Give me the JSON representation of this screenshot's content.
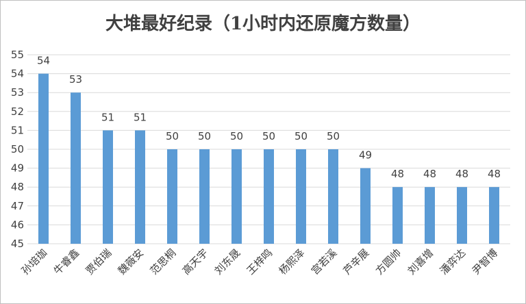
{
  "chart_data": {
    "type": "bar",
    "title": "大堆最好纪录（1小时内还原魔方数量）",
    "categories": [
      "孙培珈",
      "牛睿鑫",
      "贾伯瑞",
      "魏薇安",
      "范思桐",
      "高天宇",
      "刘东晟",
      "王梓鸣",
      "杨熙泽",
      "宫若溪",
      "芦辛展",
      "方圆帅",
      "刘喜增",
      "潘弈达",
      "尹智博"
    ],
    "values": [
      54,
      53,
      51,
      51,
      50,
      50,
      50,
      50,
      50,
      50,
      49,
      48,
      48,
      48,
      48
    ],
    "ylim": [
      45,
      55
    ],
    "yticks": [
      45,
      46,
      47,
      48,
      49,
      50,
      51,
      52,
      53,
      54,
      55
    ],
    "grid": true,
    "legend": "none",
    "bar_color": "#5b9bd5",
    "grid_color": "#d9d9d9",
    "text_color": "#404040"
  }
}
